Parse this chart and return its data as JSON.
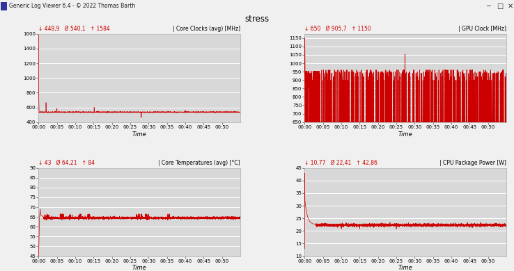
{
  "title": "stress",
  "window_title": "Generic Log Viewer 6.4 - © 2022 Thomas Barth",
  "outer_bg": "#f0f0f0",
  "plot_bg_color": "#d8d8d8",
  "line_color": "#cc0000",
  "grid_color": "#ffffff",
  "border_color": "#aaaaaa",
  "panel1": {
    "label": "| Core Clocks (avg) [MHz]",
    "stat_min": "448,9",
    "stat_avg": "540,1",
    "stat_max": "1584",
    "ylim": [
      400,
      1600
    ],
    "yticks": [
      400,
      600,
      800,
      1000,
      1200,
      1400,
      1600
    ],
    "xlabel": "Time"
  },
  "panel2": {
    "label": "| GPU Clock [MHz]",
    "stat_min": "650",
    "stat_avg": "905,7",
    "stat_max": "1150",
    "ylim": [
      650,
      1175
    ],
    "yticks": [
      650,
      700,
      750,
      800,
      850,
      900,
      950,
      1000,
      1050,
      1100,
      1150
    ],
    "xlabel": "Time"
  },
  "panel3": {
    "label": "| Core Temperatures (avg) [°C]",
    "stat_min": "43",
    "stat_avg": "64,21",
    "stat_max": "84",
    "ylim": [
      45,
      90
    ],
    "yticks": [
      45,
      50,
      55,
      60,
      65,
      70,
      75,
      80,
      85,
      90
    ],
    "xlabel": "Time"
  },
  "panel4": {
    "label": "| CPU Package Power [W]",
    "stat_min": "10,77",
    "stat_avg": "22,41",
    "stat_max": "42,86",
    "ylim": [
      10,
      45
    ],
    "yticks": [
      10,
      15,
      20,
      25,
      30,
      35,
      40,
      45
    ],
    "xlabel": "Time"
  },
  "time_total_seconds": 3300,
  "xtick_labels": [
    "00:00",
    "00:05",
    "00:10",
    "00:15",
    "00:20",
    "00:25",
    "00:30",
    "00:35",
    "00:40",
    "00:45",
    "00:50"
  ],
  "xtick_values": [
    0,
    300,
    600,
    900,
    1200,
    1500,
    1800,
    2100,
    2400,
    2700,
    3000
  ]
}
